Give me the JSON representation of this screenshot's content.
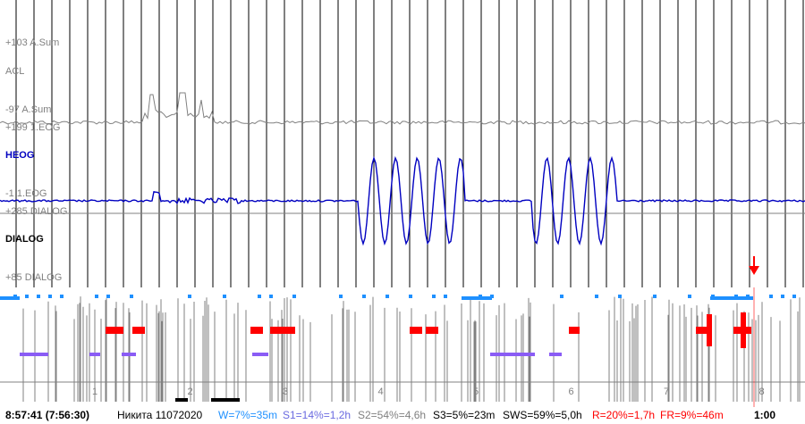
{
  "signal_labels": {
    "acl_scale_top": "+103 A.Sum",
    "acl": "ACL",
    "acl_scale_bottom": "-97 A.Sum",
    "heog_scale_top": "+199 1.EOG",
    "heog": "HEOG",
    "heog_scale_bottom": "-1 1.EOG",
    "dialog_scale_top": "+285 DIALOG",
    "dialog": "DIALOG",
    "dialog_scale_bottom": "+85 DIALOG"
  },
  "hour_ticks": [
    "1",
    "2",
    "3",
    "4",
    "5",
    "6",
    "7",
    "8"
  ],
  "status": {
    "time": "8:57:41 (7:56:30)",
    "record": "Никита 11072020",
    "w": "W=7%=35m",
    "s1": "S1=14%=1,2h",
    "s2": "S2=54%=4,6h",
    "s3": "S3=5%=23m",
    "sws": "SWS=59%=5,0h",
    "r": "R=20%=1,7h",
    "fr": "FR=9%=46m",
    "clock": "1:00"
  },
  "colors": {
    "grid": "#000000",
    "acl_trace": "#808080",
    "heog_trace": "#0000c0",
    "heog_label": "#0000c0",
    "scale_label": "#808080",
    "wake": "#1e90ff",
    "rem": "#ff0000",
    "s1": "#8a5cf5",
    "s3": "#000000",
    "cursor": "#ff0000",
    "status_w": "#1e90ff",
    "status_s1": "#6a6ae0",
    "status_s2": "#808080",
    "status_r": "#ff0000"
  },
  "icons": {
    "cursor_marker": "red-down-arrow-icon"
  }
}
